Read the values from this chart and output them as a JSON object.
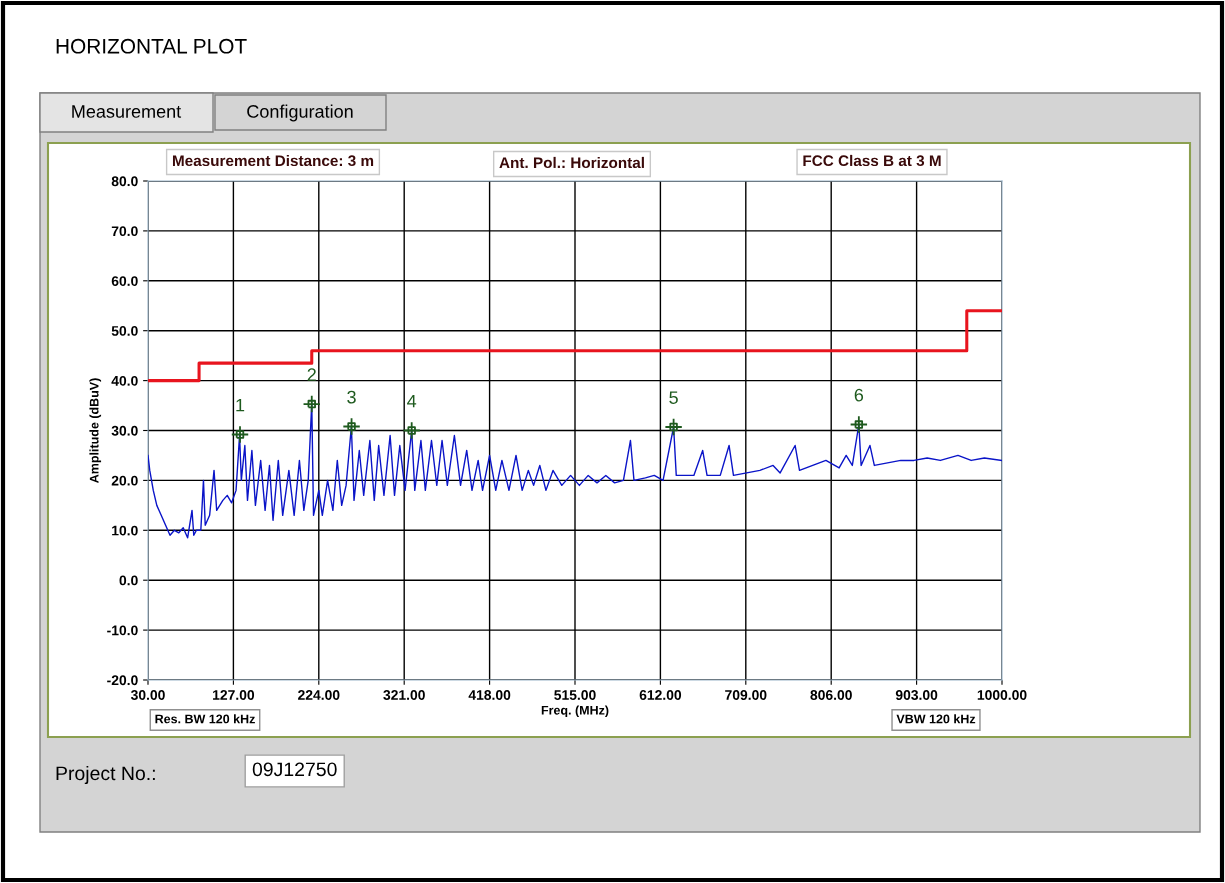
{
  "chart_data": {
    "type": "line",
    "title": "HORIZONTAL PLOT",
    "xlabel": "Freq. (MHz)",
    "ylabel": "Amplitude (dBuV)",
    "xlim": [
      30,
      1000
    ],
    "ylim": [
      -20,
      80
    ],
    "xticks": [
      {
        "value": 30,
        "label": "30.00"
      },
      {
        "value": 127,
        "label": "127.00"
      },
      {
        "value": 224,
        "label": "224.00"
      },
      {
        "value": 321,
        "label": "321.00"
      },
      {
        "value": 418,
        "label": "418.00"
      },
      {
        "value": 515,
        "label": "515.00"
      },
      {
        "value": 612,
        "label": "612.00"
      },
      {
        "value": 709,
        "label": "709.00"
      },
      {
        "value": 806,
        "label": "806.00"
      },
      {
        "value": 903,
        "label": "903.00"
      },
      {
        "value": 1000,
        "label": "1000.00"
      }
    ],
    "yticks": [
      {
        "value": -20,
        "label": "-20.0"
      },
      {
        "value": -10,
        "label": "-10.0"
      },
      {
        "value": 0,
        "label": "0.0"
      },
      {
        "value": 10,
        "label": "10.0"
      },
      {
        "value": 20,
        "label": "20.0"
      },
      {
        "value": 30,
        "label": "30.0"
      },
      {
        "value": 40,
        "label": "40.0"
      },
      {
        "value": 50,
        "label": "50.0"
      },
      {
        "value": 60,
        "label": "60.0"
      },
      {
        "value": 70,
        "label": "70.0"
      },
      {
        "value": 80,
        "label": "80.0"
      }
    ],
    "grid": true,
    "series": [
      {
        "color": "#0a14c8",
        "x": [
          30,
          32,
          36,
          40,
          45,
          50,
          55,
          60,
          65,
          70,
          75,
          80,
          82,
          85,
          90,
          93,
          95,
          100,
          105,
          108,
          115,
          120,
          125,
          130,
          134,
          136,
          140,
          143,
          148,
          152,
          158,
          163,
          168,
          172,
          178,
          183,
          190,
          196,
          202,
          207,
          212,
          216,
          218,
          224,
          228,
          234,
          240,
          245,
          250,
          255,
          261,
          264,
          270,
          275,
          282,
          287,
          292,
          298,
          305,
          310,
          316,
          322,
          329.5,
          333,
          340,
          345,
          352,
          358,
          364,
          370,
          378,
          385,
          392,
          398,
          405,
          410,
          418,
          425,
          432,
          440,
          448,
          455,
          462,
          468,
          475,
          482,
          490,
          500,
          510,
          520,
          530,
          540,
          550,
          560,
          570,
          578,
          582,
          595,
          605,
          615,
          627,
          630,
          640,
          650,
          660,
          665,
          680,
          690,
          695,
          710,
          725,
          740,
          748,
          765,
          770,
          785,
          800,
          815,
          823,
          830,
          837.4,
          840,
          850,
          855,
          870,
          885,
          900,
          915,
          930,
          950,
          965,
          980,
          1000
        ],
        "values": [
          25,
          22,
          18,
          15,
          13,
          11,
          9,
          10,
          9.5,
          10.5,
          8.5,
          14,
          9,
          10,
          10,
          20,
          11,
          13,
          22,
          14,
          16,
          17,
          15.5,
          18,
          29,
          20,
          27,
          16,
          26,
          15,
          24,
          14,
          23,
          12,
          24,
          13,
          22,
          13,
          24,
          14,
          20,
          35.5,
          13,
          18,
          13,
          20,
          14,
          24,
          15,
          19,
          30.8,
          16,
          26,
          17,
          28,
          16,
          27,
          17,
          29,
          17,
          27,
          18,
          30,
          18,
          28,
          18,
          28,
          19,
          28,
          19,
          29,
          19,
          26,
          18,
          24,
          18,
          25,
          18,
          24,
          18,
          25,
          18,
          22,
          19,
          23,
          18,
          22,
          19,
          21,
          19,
          21,
          19.5,
          21,
          19.5,
          20,
          28,
          20,
          20.5,
          21,
          20,
          30.7,
          21,
          21,
          21,
          26,
          21,
          21,
          27,
          21,
          21.5,
          22,
          23,
          21.5,
          27,
          22,
          23,
          24,
          22.5,
          25,
          23,
          31.2,
          23,
          27,
          23,
          23.5,
          24,
          24,
          24.5,
          24,
          25,
          24,
          24.5,
          24
        ]
      },
      {
        "type": "step",
        "color": "#e8141e",
        "x": [
          30,
          88,
          216,
          960,
          1000
        ],
        "values": [
          40,
          43.5,
          46,
          54,
          54
        ]
      },
      {
        "type": "scatter",
        "color": "#1e5a1e",
        "marker": "cross",
        "x": [
          134.5,
          216,
          261.2,
          329.5,
          627,
          837.4
        ],
        "values": [
          29.2,
          35.3,
          30.8,
          30.0,
          30.7,
          31.2
        ]
      }
    ],
    "annotations": [
      "Measurement",
      "Configuration",
      "Measurement Distance: 3 m",
      "Ant. Pol.: Horizontal",
      "FCC Class B at 3 M",
      "Res. BW 120 kHz",
      "VBW 120 kHz",
      "Project No.:",
      "09J12750",
      {
        "text": "1",
        "x": 134.5,
        "y": 29.2
      },
      {
        "text": "2",
        "x": 216,
        "y": 35.3
      },
      {
        "text": "3",
        "x": 261.2,
        "y": 30.8
      },
      {
        "text": "4",
        "x": 329.5,
        "y": 30.0
      },
      {
        "text": "5",
        "x": 627,
        "y": 30.7
      },
      {
        "text": "6",
        "x": 837.4,
        "y": 31.2
      }
    ]
  }
}
